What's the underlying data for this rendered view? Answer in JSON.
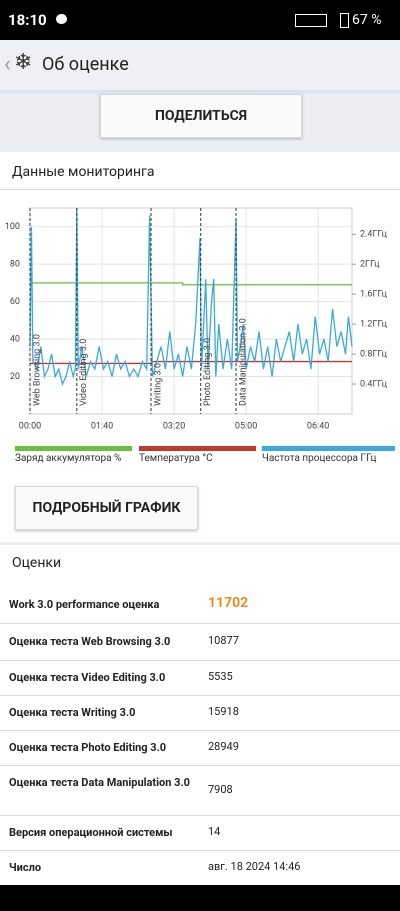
{
  "status_bar": {
    "time": "18:10",
    "battery": "67 %"
  },
  "header": {
    "title": "Об оценке"
  },
  "share_button": "ПОДЕЛИТЬСЯ",
  "monitoring": {
    "title": "Данные мониторинга",
    "detail_button": "ПОДРОБНЫЙ ГРАФИК"
  },
  "chart_data": {
    "type": "line",
    "xlim": [
      0,
      447
    ],
    "xticks": [
      {
        "value": 0,
        "label": "00:00"
      },
      {
        "value": 100,
        "label": "01:40"
      },
      {
        "value": 200,
        "label": "03:20"
      },
      {
        "value": 300,
        "label": "05:00"
      },
      {
        "value": 400,
        "label": "06:40"
      }
    ],
    "ylim": [
      0,
      110
    ],
    "yticks": [
      20,
      40,
      60,
      80,
      100
    ],
    "y2lim": [
      0,
      2.75
    ],
    "y2ticks": [
      {
        "value": 0.4,
        "label": "0.4ГГц"
      },
      {
        "value": 0.8,
        "label": "0.8ГГц"
      },
      {
        "value": 1.2,
        "label": "1.2ГГц"
      },
      {
        "value": 1.6,
        "label": "1.6ГГц"
      },
      {
        "value": 2,
        "label": "2ГГц"
      },
      {
        "value": 2.4,
        "label": "2.4ГГц"
      }
    ],
    "grid": true,
    "annotations": [
      {
        "x": 0,
        "label": "Web Browsing 3.0"
      },
      {
        "x": 65,
        "label": "Video Editing 3.0"
      },
      {
        "x": 168,
        "label": "Writing 3.0"
      },
      {
        "x": 237,
        "label": "Photo Editing 3.0"
      },
      {
        "x": 286,
        "label": "Data Manipulation 3.0"
      }
    ],
    "series": [
      {
        "name": "Заряд аккумулятора %",
        "color": "#6abf3e",
        "x": [
          0,
          212,
          212,
          447
        ],
        "values": [
          70,
          70,
          69,
          69
        ]
      },
      {
        "name": "Температура °C",
        "color": "#c0392b",
        "x": [
          0,
          168,
          169,
          447
        ],
        "values": [
          27,
          27,
          28,
          28
        ]
      },
      {
        "name": "Частота процессора ГГц",
        "color": "#3aa9dc",
        "axis": "y2",
        "x": [
          0,
          2,
          4,
          10,
          15,
          20,
          25,
          30,
          35,
          40,
          45,
          50,
          55,
          60,
          63,
          65,
          67,
          72,
          78,
          84,
          90,
          96,
          102,
          108,
          114,
          120,
          126,
          132,
          138,
          144,
          150,
          156,
          162,
          166,
          170,
          176,
          182,
          188,
          194,
          200,
          206,
          212,
          218,
          224,
          230,
          236,
          238,
          244,
          247,
          252,
          255,
          258,
          262,
          268,
          274,
          280,
          286,
          288,
          292,
          296,
          300,
          306,
          312,
          318,
          324,
          330,
          336,
          342,
          348,
          354,
          360,
          366,
          372,
          378,
          384,
          390,
          396,
          402,
          408,
          414,
          420,
          426,
          432,
          438,
          442,
          447
        ],
        "values": [
          0.9,
          2.5,
          0.7,
          0.6,
          0.9,
          0.5,
          0.6,
          0.8,
          0.5,
          0.6,
          0.4,
          0.5,
          0.7,
          0.5,
          0.6,
          2.75,
          0.6,
          0.9,
          0.5,
          0.7,
          0.6,
          0.9,
          0.6,
          0.7,
          0.5,
          0.8,
          0.6,
          0.7,
          0.5,
          0.6,
          0.5,
          0.7,
          0.6,
          2.65,
          0.5,
          0.7,
          0.9,
          0.6,
          1.1,
          0.6,
          0.8,
          0.5,
          0.9,
          0.6,
          1.2,
          2.35,
          0.6,
          1.8,
          0.6,
          1.5,
          1.8,
          0.5,
          1.2,
          0.6,
          1.0,
          0.6,
          2.6,
          0.7,
          0.9,
          1.2,
          0.6,
          0.9,
          0.7,
          1.1,
          0.6,
          0.9,
          0.5,
          1.0,
          0.7,
          0.9,
          1.1,
          0.7,
          1.2,
          0.8,
          1.0,
          0.6,
          1.3,
          0.8,
          1.0,
          0.7,
          1.4,
          0.9,
          1.1,
          0.8,
          1.3,
          0.9
        ]
      }
    ]
  },
  "scores": {
    "title": "Оценки",
    "rows": [
      [
        "Work 3.0 performance оценка",
        11702
      ],
      [
        "Оценка теста Web Browsing 3.0",
        10877
      ],
      [
        "Оценка теста Video Editing 3.0",
        5535
      ],
      [
        "Оценка теста Writing 3.0",
        15918
      ],
      [
        "Оценка теста Photo Editing 3.0",
        28949
      ],
      [
        "Оценка теста Data Manipulation 3.0",
        7908
      ],
      [
        "Версия операционной системы",
        "14"
      ],
      [
        "Число",
        "авг. 18 2024 14:46"
      ]
    ]
  }
}
